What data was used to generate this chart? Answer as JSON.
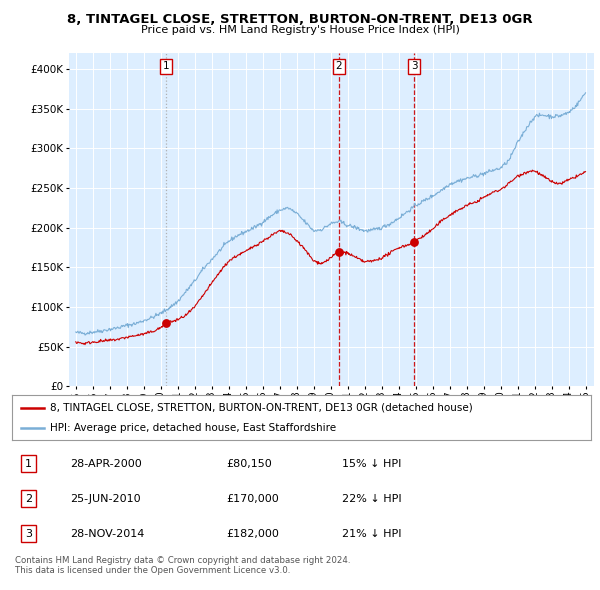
{
  "title1": "8, TINTAGEL CLOSE, STRETTON, BURTON-ON-TRENT, DE13 0GR",
  "title2": "Price paid vs. HM Land Registry's House Price Index (HPI)",
  "legend_line1": "8, TINTAGEL CLOSE, STRETTON, BURTON-ON-TRENT, DE13 0GR (detached house)",
  "legend_line2": "HPI: Average price, detached house, East Staffordshire",
  "table_rows": [
    {
      "num": "1",
      "date": "28-APR-2000",
      "price": "£80,150",
      "pct": "15% ↓ HPI"
    },
    {
      "num": "2",
      "date": "25-JUN-2010",
      "price": "£170,000",
      "pct": "22% ↓ HPI"
    },
    {
      "num": "3",
      "date": "28-NOV-2014",
      "price": "£182,000",
      "pct": "21% ↓ HPI"
    }
  ],
  "footer1": "Contains HM Land Registry data © Crown copyright and database right 2024.",
  "footer2": "This data is licensed under the Open Government Licence v3.0.",
  "sale_color": "#cc0000",
  "hpi_color": "#7aaed6",
  "vline1_color": "#aaaaaa",
  "vline1_style": "dotted",
  "vline23_color": "#cc0000",
  "vline23_style": "dashed",
  "chart_bg": "#ddeeff",
  "bg_color": "#ffffff",
  "grid_color": "#ffffff",
  "ylim": [
    0,
    420000
  ],
  "yticks": [
    0,
    50000,
    100000,
    150000,
    200000,
    250000,
    300000,
    350000,
    400000
  ],
  "sale_points": [
    {
      "year": 2000.32,
      "price": 80150
    },
    {
      "year": 2010.48,
      "price": 170000
    },
    {
      "year": 2014.91,
      "price": 182000
    }
  ],
  "vlines": [
    {
      "x": 2000.32,
      "color": "#aaaaaa",
      "style": "dotted"
    },
    {
      "x": 2010.48,
      "color": "#cc0000",
      "style": "dashed"
    },
    {
      "x": 2014.91,
      "color": "#cc0000",
      "style": "dashed"
    }
  ],
  "hpi_anchors_t": [
    1995.0,
    1995.5,
    1996.0,
    1996.5,
    1997.0,
    1997.5,
    1998.0,
    1998.5,
    1999.0,
    1999.5,
    2000.0,
    2000.5,
    2001.0,
    2001.5,
    2002.0,
    2002.5,
    2003.0,
    2003.5,
    2004.0,
    2004.5,
    2005.0,
    2005.5,
    2006.0,
    2006.5,
    2007.0,
    2007.5,
    2008.0,
    2008.5,
    2009.0,
    2009.5,
    2010.0,
    2010.5,
    2011.0,
    2011.5,
    2012.0,
    2012.5,
    2013.0,
    2013.5,
    2014.0,
    2014.5,
    2015.0,
    2015.5,
    2016.0,
    2016.5,
    2017.0,
    2017.5,
    2018.0,
    2018.5,
    2019.0,
    2019.5,
    2020.0,
    2020.5,
    2021.0,
    2021.5,
    2022.0,
    2022.5,
    2023.0,
    2023.5,
    2024.0,
    2024.5,
    2025.0
  ],
  "hpi_anchors_v": [
    68000,
    67000,
    68500,
    70000,
    72000,
    74000,
    77000,
    79000,
    83000,
    87000,
    92000,
    99000,
    107000,
    120000,
    133000,
    148000,
    160000,
    172000,
    183000,
    190000,
    195000,
    200000,
    207000,
    215000,
    222000,
    225000,
    218000,
    207000,
    196000,
    198000,
    205000,
    208000,
    203000,
    200000,
    196000,
    197000,
    200000,
    205000,
    212000,
    220000,
    228000,
    234000,
    240000,
    247000,
    255000,
    259000,
    262000,
    265000,
    268000,
    272000,
    275000,
    285000,
    307000,
    325000,
    340000,
    342000,
    340000,
    341000,
    345000,
    355000,
    370000
  ],
  "sale_anchors_t": [
    1995.0,
    1995.5,
    1996.0,
    1996.5,
    1997.0,
    1997.5,
    1998.0,
    1998.5,
    1999.0,
    1999.5,
    2000.0,
    2000.32,
    2000.7,
    2001.0,
    2001.5,
    2002.0,
    2002.5,
    2003.0,
    2003.5,
    2004.0,
    2004.5,
    2005.0,
    2005.5,
    2006.0,
    2006.5,
    2007.0,
    2007.5,
    2008.0,
    2008.5,
    2009.0,
    2009.5,
    2010.0,
    2010.48,
    2011.0,
    2011.5,
    2012.0,
    2012.5,
    2013.0,
    2013.5,
    2014.0,
    2014.5,
    2014.91,
    2015.0,
    2015.5,
    2016.0,
    2016.5,
    2017.0,
    2017.5,
    2018.0,
    2018.5,
    2019.0,
    2019.5,
    2020.0,
    2020.5,
    2021.0,
    2021.5,
    2022.0,
    2022.5,
    2023.0,
    2023.5,
    2024.0,
    2024.5,
    2025.0
  ],
  "sale_anchors_v": [
    56000,
    54000,
    56000,
    57000,
    58000,
    59500,
    62000,
    64000,
    66000,
    69000,
    74000,
    80150,
    82000,
    84000,
    90000,
    100000,
    115000,
    130000,
    145000,
    158000,
    165000,
    170000,
    177000,
    183000,
    190000,
    196000,
    193000,
    184000,
    172000,
    158000,
    155000,
    162000,
    170000,
    168000,
    162000,
    157000,
    158000,
    162000,
    168000,
    175000,
    178000,
    182000,
    184000,
    190000,
    198000,
    208000,
    216000,
    222000,
    228000,
    232000,
    238000,
    244000,
    248000,
    256000,
    265000,
    270000,
    272000,
    265000,
    258000,
    255000,
    260000,
    265000,
    270000
  ]
}
